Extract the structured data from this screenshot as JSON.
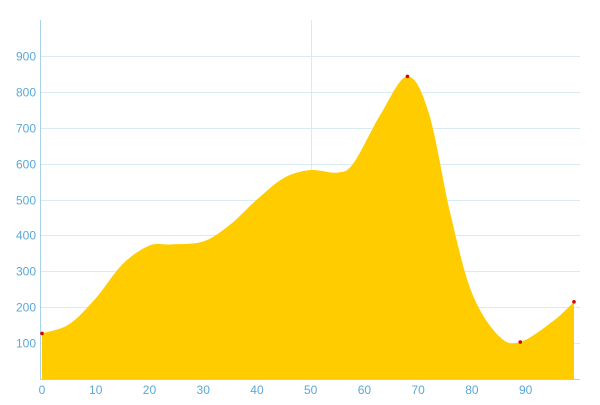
{
  "chart_data": {
    "type": "area",
    "title": "",
    "xlabel": "",
    "ylabel": "",
    "xlim": [
      0,
      99
    ],
    "ylim": [
      0,
      1000
    ],
    "x_ticks": [
      0,
      10,
      20,
      30,
      40,
      50,
      60,
      70,
      80,
      90
    ],
    "x_tick_labels": [
      "0",
      "10",
      "20",
      "30",
      "40",
      "50",
      "60",
      "70",
      "80",
      "90"
    ],
    "y_ticks": [
      100,
      200,
      300,
      400,
      500,
      600,
      700,
      800,
      900
    ],
    "y_tick_labels": [
      "100",
      "200",
      "300",
      "400",
      "500",
      "600",
      "700",
      "800",
      "900"
    ],
    "grid": true,
    "reference_line_x": 50,
    "colors": {
      "area": "#ffcc00",
      "grid": "#d8ebf5",
      "axis": "#a9d3ea",
      "tick_text": "#5aa9d6",
      "marker": "#dd0000"
    },
    "series": [
      {
        "x": [
          0,
          5,
          10,
          15,
          20,
          24,
          30,
          35,
          40,
          45,
          50,
          55,
          58,
          63,
          68,
          72,
          76,
          80,
          85,
          89,
          95,
          99
        ],
        "y": [
          127,
          152,
          225,
          320,
          372,
          375,
          383,
          430,
          500,
          560,
          582,
          575,
          602,
          737,
          843,
          740,
          460,
          240,
          120,
          103,
          160,
          215
        ]
      }
    ],
    "markers": [
      {
        "x": 0,
        "y": 127
      },
      {
        "x": 68,
        "y": 843
      },
      {
        "x": 89,
        "y": 103
      },
      {
        "x": 99,
        "y": 215
      }
    ]
  }
}
